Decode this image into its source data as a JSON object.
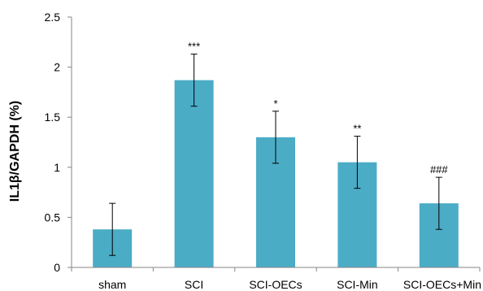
{
  "chart_data": {
    "type": "bar",
    "title": "",
    "xlabel": "",
    "ylabel": "IL1β/GAPDH (%)",
    "categories": [
      "sham",
      "SCI",
      "SCI-OECs",
      "SCI-Min",
      "SCI-OECs+Min"
    ],
    "values": [
      0.38,
      1.87,
      1.3,
      1.05,
      0.64
    ],
    "errors": [
      0.26,
      0.26,
      0.26,
      0.26,
      0.26
    ],
    "annotations": [
      "",
      "***",
      "*",
      "**",
      "###"
    ],
    "ylim": [
      0,
      2.5
    ],
    "yticks": [
      "0",
      "0.5",
      "1",
      "1.5",
      "2",
      "2.5"
    ],
    "ytick_values": [
      0,
      0.5,
      1,
      1.5,
      2,
      2.5
    ],
    "grid": false,
    "bar_color": "#4bacc6",
    "axis_color": "#868686"
  }
}
